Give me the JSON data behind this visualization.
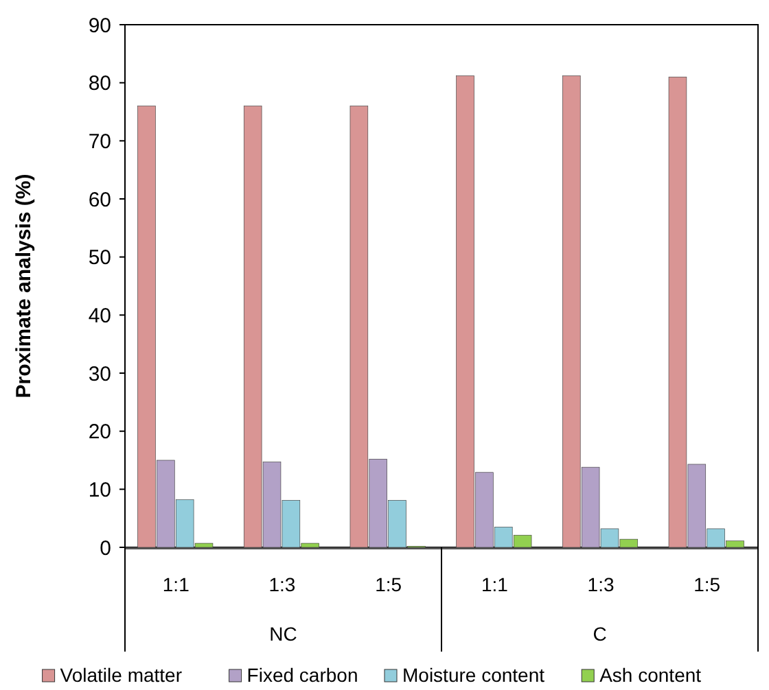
{
  "chart_data": {
    "type": "bar",
    "ylabel": "Proximate analysis (%)",
    "categories": [
      "1:1",
      "1:3",
      "1:5",
      "1:1",
      "1:3",
      "1:5"
    ],
    "annotations": [
      "NC",
      "C"
    ],
    "series": [
      {
        "name": "Volatile matter",
        "color": "#d99594",
        "values": [
          76.0,
          76.0,
          76.0,
          81.2,
          81.2,
          81.0
        ]
      },
      {
        "name": "Fixed carbon",
        "color": "#b2a1c7",
        "values": [
          15.0,
          14.7,
          15.2,
          12.9,
          13.8,
          14.3
        ]
      },
      {
        "name": "Moisture content",
        "color": "#92cddc",
        "values": [
          8.2,
          8.1,
          8.1,
          3.5,
          3.2,
          3.2
        ]
      },
      {
        "name": "Ash content",
        "color": "#92d050",
        "values": [
          0.7,
          0.7,
          0.2,
          2.1,
          1.4,
          1.1
        ]
      }
    ],
    "ylim": [
      0,
      90
    ],
    "yticks": [
      0,
      10,
      20,
      30,
      40,
      50,
      60,
      70,
      80,
      90
    ],
    "grid": false,
    "legend": "bottom"
  }
}
